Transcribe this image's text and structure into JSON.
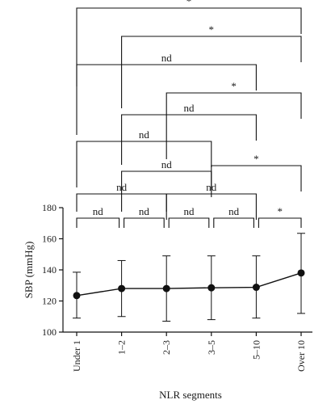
{
  "chart_data": {
    "type": "line",
    "xlabel": "NLR segments",
    "ylabel": "SBP (mmHg)",
    "ylim": [
      100,
      180
    ],
    "yticks": [
      100,
      120,
      140,
      160,
      180
    ],
    "categories": [
      "Under 1",
      "1–2",
      "2–3",
      "3–5",
      "5–10",
      "Over 10"
    ],
    "series": [
      {
        "values": [
          123.5,
          128,
          128,
          128.5,
          128.8,
          138
        ],
        "error_low": [
          109,
          110,
          107,
          108,
          109,
          112
        ],
        "error_high": [
          138.5,
          146,
          149,
          149,
          149,
          163.5
        ]
      }
    ],
    "significance": [
      {
        "from": 0,
        "to": 5,
        "label": "*"
      },
      {
        "from": 1,
        "to": 5,
        "label": "*"
      },
      {
        "from": 0,
        "to": 4,
        "label": "nd"
      },
      {
        "from": 2,
        "to": 5,
        "label": "*"
      },
      {
        "from": 1,
        "to": 4,
        "label": "nd"
      },
      {
        "from": 0,
        "to": 3,
        "label": "nd"
      },
      {
        "from": 3,
        "to": 5,
        "label": "*"
      },
      {
        "from": 1,
        "to": 3,
        "label": "nd"
      },
      {
        "from": 0,
        "to": 2,
        "label": "nd"
      },
      {
        "from": 2,
        "to": 4,
        "label": "nd"
      },
      {
        "from": 0,
        "to": 1,
        "label": "nd"
      },
      {
        "from": 1,
        "to": 2,
        "label": "nd"
      },
      {
        "from": 2,
        "to": 3,
        "label": "nd"
      },
      {
        "from": 3,
        "to": 4,
        "label": "nd"
      },
      {
        "from": 4,
        "to": 5,
        "label": "*"
      }
    ],
    "grid": false,
    "legend": "none",
    "colors": {
      "line": "#111111",
      "marker": "#111111"
    }
  }
}
